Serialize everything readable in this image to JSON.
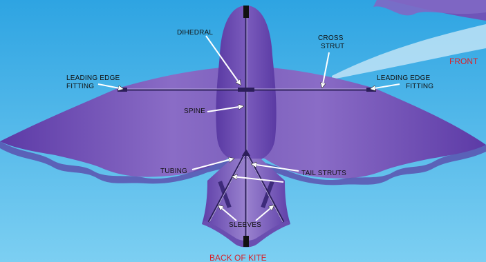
{
  "labels": {
    "dihedral": "DIHEDRAL",
    "cross_strut_1": "CROSS",
    "cross_strut_2": "STRUT",
    "leading_edge_left_1": "LEADING EDGE",
    "leading_edge_left_2": "FITTING",
    "leading_edge_right_1": "LEADING EDGE",
    "leading_edge_right_2": "FITTING",
    "spine": "SPINE",
    "tubing": "TUBING",
    "tail_struts": "TAIL STRUTS",
    "sleeves": "SLEEVES",
    "front": "FRONT",
    "back": "BACK OF KITE"
  },
  "colors": {
    "sky": "#4fb4e6",
    "kite_purple": "#6a4eb0",
    "kite_dark": "#4a2f8e",
    "accent_red": "#d8222a"
  }
}
